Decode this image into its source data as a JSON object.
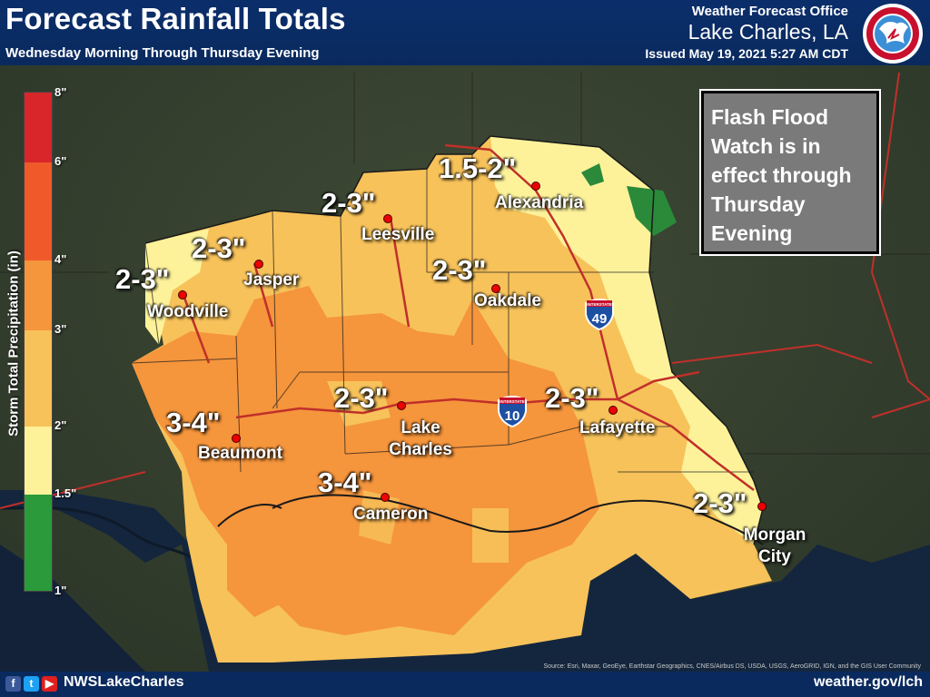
{
  "header": {
    "title": "Forecast Rainfall Totals",
    "subtitle": "Wednesday Morning Through Thursday Evening",
    "office": "Weather Forecast Office",
    "office_location": "Lake Charles, LA",
    "issued": "Issued May 19, 2021 5:27 AM CDT",
    "logo_icon": "nws-logo-icon"
  },
  "legend": {
    "title": "Storm Total Precipitation (in)",
    "ticks": [
      "8\"",
      "6\"",
      "4\"",
      "3\"",
      "2\"",
      "1.5\"",
      "1\""
    ],
    "colors": [
      "#d8262a",
      "#f05a2a",
      "#f5953c",
      "#f7c25a",
      "#fdf29a",
      "#2a9a3a"
    ]
  },
  "watch_box": {
    "lines": [
      "Flash Flood",
      "Watch is in",
      "effect through",
      "Thursday",
      "Evening"
    ]
  },
  "locations": [
    {
      "city": "Alexandria",
      "total": "1.5-2\""
    },
    {
      "city": "Leesville",
      "total": "2-3\""
    },
    {
      "city": "Jasper",
      "total": "2-3\""
    },
    {
      "city": "Woodville",
      "total": "2-3\""
    },
    {
      "city": "Oakdale",
      "total": "2-3\""
    },
    {
      "city": "Lake Charles",
      "total": "2-3\""
    },
    {
      "city": "Lafayette",
      "total": "2-3\""
    },
    {
      "city": "Beaumont",
      "total": "3-4\""
    },
    {
      "city": "Cameron",
      "total": "3-4\""
    },
    {
      "city": "Morgan City",
      "total": "2-3\""
    }
  ],
  "interstates": [
    {
      "label": "INTERSTATE",
      "number": "49"
    },
    {
      "label": "INTERSTATE",
      "number": "10"
    }
  ],
  "footer": {
    "icons": [
      "facebook-icon",
      "twitter-icon",
      "youtube-icon"
    ],
    "handle": "NWSLakeCharles",
    "website": "weather.gov/lch"
  },
  "attribution": "Source: Esri, Maxar, GeoEye, Earthstar Geographics, CNES/Airbus DS, USDA, USGS, AeroGRID, IGN, and the GIS User Community",
  "colors": {
    "header_bg": "#0a2a5e",
    "rain_1_5_2": "#fdf29a",
    "rain_2_3": "#f7c25a",
    "rain_3_4": "#f5953c",
    "low_green": "#2a8a3a"
  }
}
